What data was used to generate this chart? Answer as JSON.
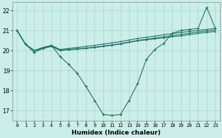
{
  "xlabel": "Humidex (Indice chaleur)",
  "background_color": "#cceee8",
  "grid_color": "#aad8d2",
  "line_color": "#1a7068",
  "yticks": [
    17,
    18,
    19,
    20,
    21,
    22
  ],
  "xticks": [
    0,
    1,
    2,
    3,
    4,
    5,
    6,
    7,
    8,
    9,
    10,
    11,
    12,
    13,
    14,
    15,
    16,
    17,
    18,
    19,
    20,
    21,
    22,
    23
  ],
  "xlim": [
    -0.5,
    23.5
  ],
  "ylim": [
    16.5,
    22.4
  ],
  "line1_x": [
    0,
    1,
    2,
    3,
    4,
    5,
    6,
    7,
    8,
    9,
    10,
    11,
    12,
    13,
    14,
    15,
    16,
    17,
    18,
    19,
    20,
    21,
    22,
    23
  ],
  "line1_y": [
    21.0,
    20.3,
    19.9,
    20.1,
    20.25,
    19.7,
    19.3,
    18.85,
    18.2,
    17.5,
    16.8,
    16.75,
    16.8,
    17.5,
    18.35,
    19.55,
    20.05,
    20.35,
    20.85,
    21.0,
    21.05,
    21.1,
    22.15,
    21.1
  ],
  "line2_x": [
    0,
    1,
    2,
    3,
    4,
    5,
    6,
    7,
    8,
    9,
    10,
    11,
    12,
    13,
    14,
    15,
    16,
    17,
    18,
    19,
    20,
    21,
    22,
    23
  ],
  "line2_y": [
    21.0,
    20.3,
    20.0,
    20.15,
    20.25,
    20.05,
    20.1,
    20.15,
    20.2,
    20.25,
    20.32,
    20.38,
    20.44,
    20.52,
    20.6,
    20.66,
    20.72,
    20.78,
    20.84,
    20.9,
    20.95,
    21.0,
    21.05,
    21.1
  ],
  "line3_x": [
    0,
    1,
    2,
    3,
    4,
    5,
    6,
    7,
    8,
    9,
    10,
    11,
    12,
    13,
    14,
    15,
    16,
    17,
    18,
    19,
    20,
    21,
    22,
    23
  ],
  "line3_y": [
    21.0,
    20.3,
    20.0,
    20.1,
    20.2,
    20.0,
    20.05,
    20.08,
    20.12,
    20.16,
    20.22,
    20.28,
    20.34,
    20.42,
    20.5,
    20.56,
    20.62,
    20.68,
    20.74,
    20.8,
    20.86,
    20.92,
    20.97,
    21.02
  ],
  "line4_x": [
    0,
    1,
    2,
    3,
    4,
    5,
    6,
    7,
    8,
    9,
    10,
    11,
    12,
    13,
    14,
    15,
    16,
    17,
    18,
    19,
    20,
    21,
    22,
    23
  ],
  "line4_y": [
    21.0,
    20.3,
    20.0,
    20.1,
    20.22,
    20.0,
    20.03,
    20.06,
    20.1,
    20.14,
    20.2,
    20.26,
    20.32,
    20.4,
    20.48,
    20.53,
    20.58,
    20.63,
    20.68,
    20.73,
    20.79,
    20.85,
    20.9,
    20.95
  ]
}
